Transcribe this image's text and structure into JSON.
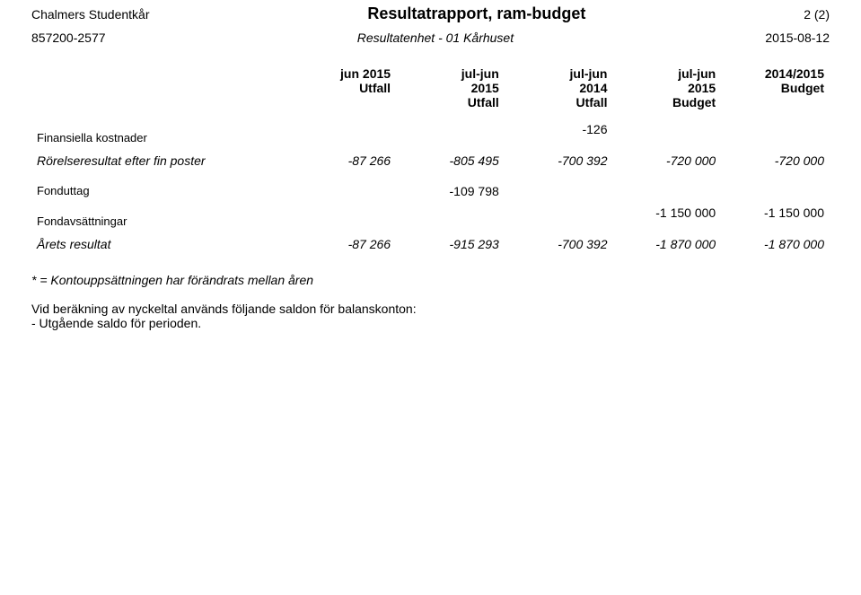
{
  "header": {
    "org_name": "Chalmers Studentkår",
    "report_title": "Resultatrapport, ram-budget",
    "page_indicator": "2 (2)",
    "org_id": "857200-2577",
    "result_unit": "Resultatenhet - 01 Kårhuset",
    "print_date": "2015-08-12"
  },
  "columns": [
    {
      "line1": "jun 2015",
      "line2": "Utfall",
      "line3": ""
    },
    {
      "line1": "jul-jun",
      "line2": "2015",
      "line3": "Utfall"
    },
    {
      "line1": "jul-jun",
      "line2": "2014",
      "line3": "Utfall"
    },
    {
      "line1": "jul-jun",
      "line2": "2015",
      "line3": "Budget"
    },
    {
      "line1": "2014/2015",
      "line2": "Budget",
      "line3": ""
    }
  ],
  "rows": [
    {
      "type": "section",
      "label": "Finansiella kostnader",
      "values": [
        "",
        "",
        "-126",
        "",
        ""
      ]
    },
    {
      "type": "italic",
      "label": "Rörelseresultat efter fin poster",
      "values": [
        "-87 266",
        "-805 495",
        "-700 392",
        "-720 000",
        "-720 000"
      ]
    },
    {
      "type": "spacer section",
      "label": "Fonduttag",
      "values": [
        "",
        "-109 798",
        "",
        "",
        ""
      ]
    },
    {
      "type": "section",
      "label": "Fondavsättningar",
      "values": [
        "",
        "",
        "",
        "-1 150 000",
        "-1 150 000"
      ]
    },
    {
      "type": "italic",
      "label": "Årets resultat",
      "values": [
        "-87 266",
        "-915 293",
        "-700 392",
        "-1 870 000",
        "-1 870 000"
      ]
    }
  ],
  "footnote": "* = Kontouppsättningen har förändrats mellan åren",
  "note_lines": [
    "Vid beräkning av nyckeltal används följande saldon för balanskonton:",
    "- Utgående saldo för perioden."
  ]
}
